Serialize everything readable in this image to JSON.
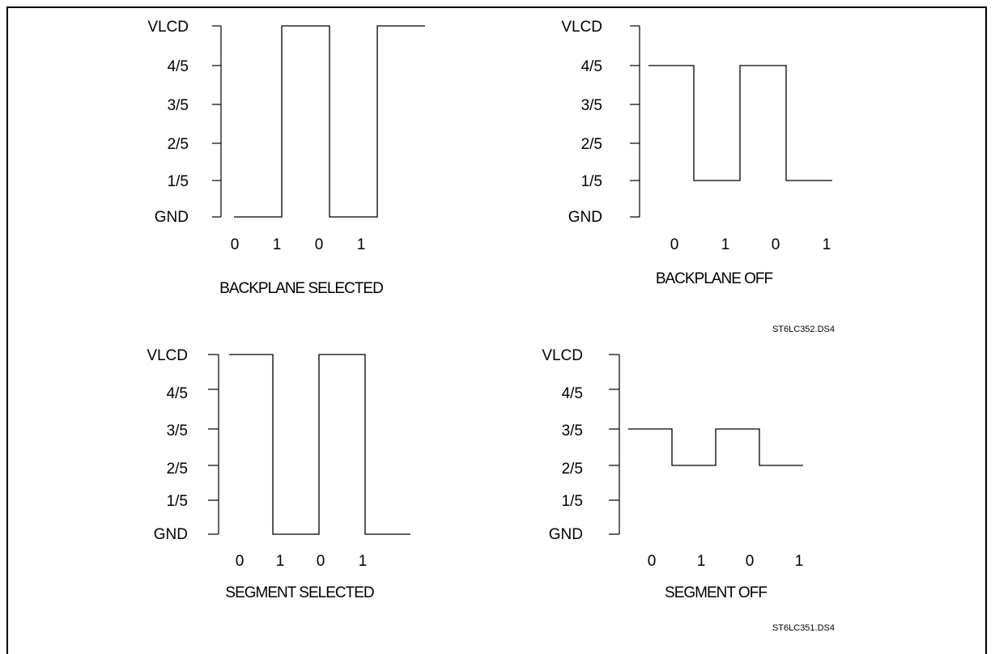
{
  "diagram": {
    "level_labels": [
      "VLCD",
      "4/5",
      "3/5",
      "2/5",
      "1/5",
      "GND"
    ],
    "bit_labels": [
      "0",
      "1",
      "0",
      "1"
    ],
    "panels": [
      {
        "id": "backplane-selected",
        "title": "BACKPLANE SELECTED",
        "levels": [
          0,
          5,
          0,
          5
        ],
        "stroke": "#000000"
      },
      {
        "id": "backplane-off",
        "title": "BACKPLANE OFF",
        "levels": [
          4,
          1,
          4,
          1
        ],
        "stroke": "#000000"
      },
      {
        "id": "segment-selected",
        "title": "SEGMENT SELECTED",
        "levels": [
          5,
          0,
          5,
          0
        ],
        "stroke": "#000000"
      },
      {
        "id": "segment-off",
        "title": "SEGMENT OFF",
        "levels": [
          3,
          2,
          3,
          2
        ],
        "stroke": "#000000"
      }
    ],
    "refs": [
      "ST6LC352.DS4",
      "ST6LC351.DS4"
    ]
  }
}
